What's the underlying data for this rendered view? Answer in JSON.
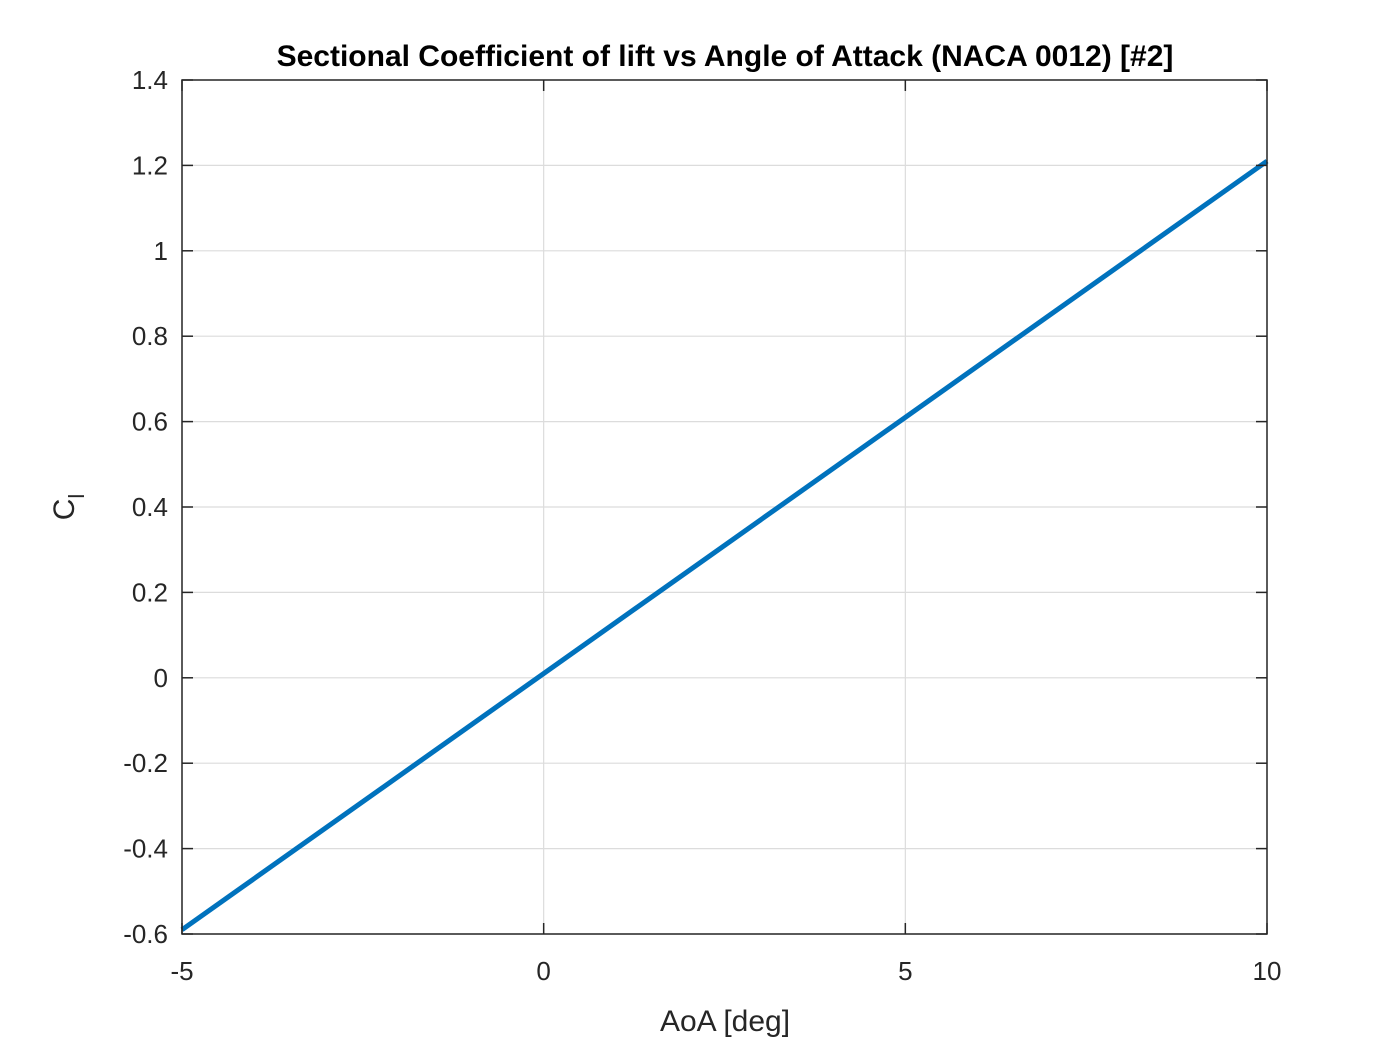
{
  "chart_data": {
    "type": "line",
    "title": "Sectional Coefficient of lift vs Angle of Attack (NACA 0012) [#2]",
    "xlabel": "AoA [deg]",
    "ylabel_main": "C",
    "ylabel_sub": "l",
    "xlim": [
      -5,
      10
    ],
    "ylim": [
      -0.6,
      1.4
    ],
    "xticks": [
      -5,
      0,
      5,
      10
    ],
    "xtick_labels": [
      "-5",
      "0",
      "5",
      "10"
    ],
    "yticks": [
      -0.6,
      -0.4,
      -0.2,
      0,
      0.2,
      0.4,
      0.6,
      0.8,
      1.0,
      1.2,
      1.4
    ],
    "ytick_labels": [
      "-0.6",
      "-0.4",
      "-0.2",
      "0",
      "0.2",
      "0.4",
      "0.6",
      "0.8",
      "1",
      "1.2",
      "1.4"
    ],
    "grid": true,
    "series": [
      {
        "color": "#0072BD",
        "x": [
          -5,
          10
        ],
        "y": [
          -0.59,
          1.21
        ]
      }
    ]
  }
}
